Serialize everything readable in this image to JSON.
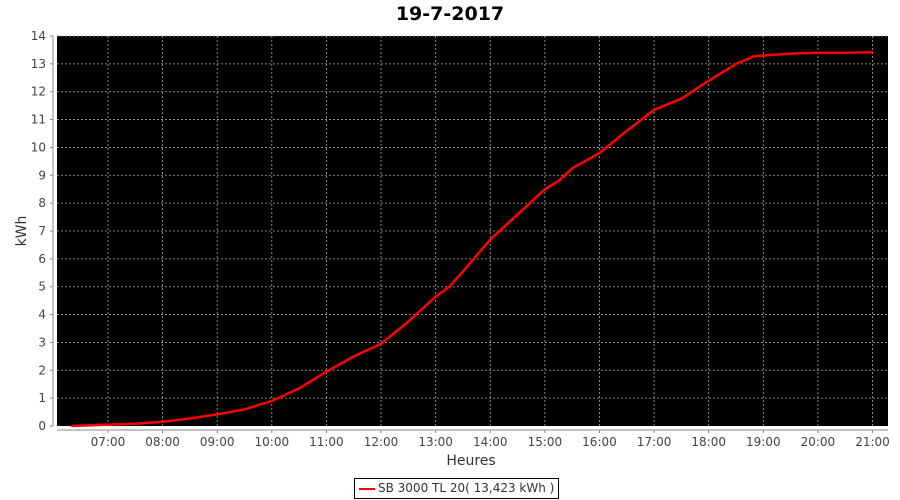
{
  "chart_data": {
    "type": "line",
    "title": "19-7-2017",
    "xlabel": "Heures",
    "ylabel": "kWh",
    "ylim": [
      0,
      14
    ],
    "xlim": [
      "06:04",
      "21:17"
    ],
    "x_ticks": [
      "07:00",
      "08:00",
      "09:00",
      "10:00",
      "11:00",
      "12:00",
      "13:00",
      "14:00",
      "15:00",
      "16:00",
      "17:00",
      "18:00",
      "19:00",
      "20:00",
      "21:00"
    ],
    "y_ticks": [
      0,
      1,
      2,
      3,
      4,
      5,
      6,
      7,
      8,
      9,
      10,
      11,
      12,
      13,
      14
    ],
    "grid": true,
    "background": "#000000",
    "legend_position": "bottom",
    "series": [
      {
        "name": "SB 3000 TL 20( 13,423 kWh )",
        "color": "#ff0000",
        "x": [
          "06:20",
          "07:00",
          "07:30",
          "08:00",
          "08:30",
          "09:00",
          "09:30",
          "10:00",
          "10:30",
          "11:00",
          "11:30",
          "12:00",
          "12:30",
          "13:00",
          "13:15",
          "13:30",
          "14:00",
          "14:30",
          "15:00",
          "15:15",
          "15:30",
          "16:00",
          "16:30",
          "17:00",
          "17:30",
          "18:00",
          "18:30",
          "18:50",
          "19:00",
          "19:30",
          "20:00",
          "20:30",
          "21:00"
        ],
        "values": [
          0,
          0.05,
          0.08,
          0.15,
          0.27,
          0.42,
          0.6,
          0.9,
          1.35,
          1.95,
          2.5,
          2.95,
          3.75,
          4.65,
          5.0,
          5.55,
          6.7,
          7.6,
          8.5,
          8.8,
          9.25,
          9.8,
          10.6,
          11.35,
          11.75,
          12.4,
          13.0,
          13.28,
          13.3,
          13.37,
          13.4,
          13.4,
          13.42
        ]
      }
    ]
  }
}
